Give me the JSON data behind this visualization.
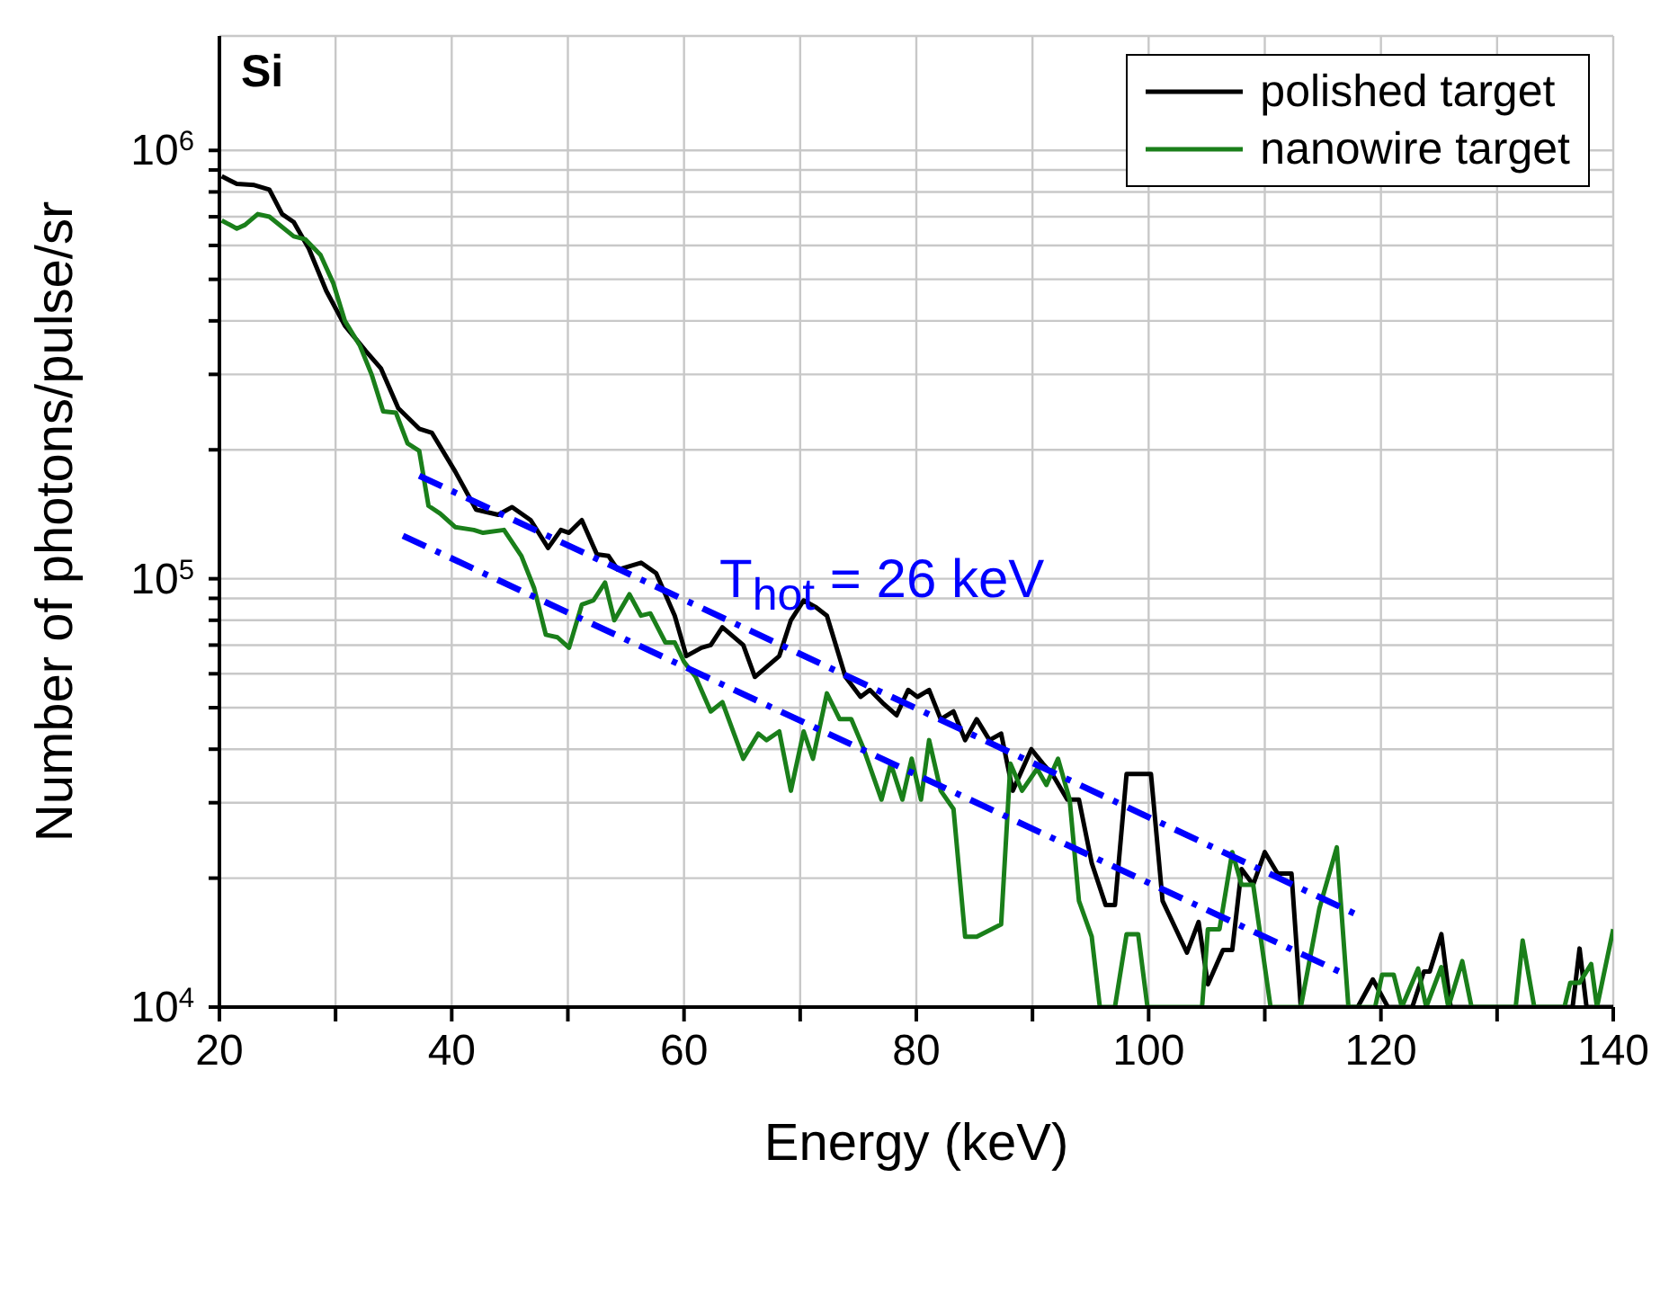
{
  "chart_data": {
    "type": "line",
    "xlabel": "Energy (keV)",
    "ylabel": "Number of photons/pulse/sr",
    "annotations": [
      "Si",
      "T$_{hot}$ = 26 keV"
    ],
    "log": "y",
    "grid": true,
    "legend": "top right",
    "marker": "none",
    "xlim": [
      20,
      140
    ],
    "xticks": [
      20,
      {
        "value": 30,
        "label": null
      },
      40,
      {
        "value": 50,
        "label": null
      },
      60,
      {
        "value": 70,
        "label": null
      },
      80,
      {
        "value": 90,
        "label": null
      },
      100,
      {
        "value": 110,
        "label": null
      },
      120,
      {
        "value": 130,
        "label": null
      },
      140
    ],
    "ylim": [
      10000,
      1850000
    ],
    "yticks": [
      {
        "value": 10000,
        "label": "10$^{4}$"
      },
      {
        "value": 20000,
        "label": null
      },
      {
        "value": 30000,
        "label": null
      },
      {
        "value": 40000,
        "label": null
      },
      {
        "value": 50000,
        "label": null
      },
      {
        "value": 60000,
        "label": null
      },
      {
        "value": 70000,
        "label": null
      },
      {
        "value": 80000,
        "label": null
      },
      {
        "value": 90000,
        "label": null
      },
      {
        "value": 100000,
        "label": "10$^{5}$"
      },
      {
        "value": 200000,
        "label": null
      },
      {
        "value": 300000,
        "label": null
      },
      {
        "value": 400000,
        "label": null
      },
      {
        "value": 500000,
        "label": null
      },
      {
        "value": 600000,
        "label": null
      },
      {
        "value": 700000,
        "label": null
      },
      {
        "value": 800000,
        "label": null
      },
      {
        "value": 900000,
        "label": null
      },
      {
        "value": 1000000,
        "label": "10$^{6}$"
      }
    ],
    "series": [
      {
        "name": "polished target",
        "color": "#000000",
        "line_style": "solid",
        "x": [
          20.2,
          21.5,
          23.0,
          24.3,
          25.4,
          26.4,
          27.7,
          29.2,
          30.8,
          32.6,
          33.9,
          35.4,
          37.2,
          38.3,
          40.3,
          42.1,
          44.0,
          45.2,
          46.8,
          48.3,
          49.4,
          50.1,
          51.2,
          52.5,
          53.5,
          54.3,
          56.3,
          57.6,
          59.2,
          60.2,
          61.5,
          62.3,
          63.3,
          65.1,
          66.1,
          68.2,
          69.2,
          70.3,
          71.3,
          72.3,
          73.9,
          75.2,
          76.0,
          77.2,
          78.3,
          79.3,
          80.1,
          81.1,
          82.1,
          83.2,
          84.2,
          85.2,
          86.3,
          87.3,
          88.3,
          89.9,
          90.9,
          91.7,
          93.0,
          94.0,
          95.1,
          96.3,
          97.1,
          98.1,
          100.2,
          101.2,
          103.3,
          104.3,
          105.1,
          106.4,
          107.2,
          108.0,
          109.0,
          110.0,
          111.1,
          112.3,
          113.1,
          118.0,
          119.3,
          120.6,
          122.7,
          123.7,
          124.2,
          125.2,
          126.0,
          136.5,
          137.1,
          137.7,
          140.0
        ],
        "values": [
          870000,
          835000,
          830000,
          810000,
          710000,
          680000,
          590000,
          470000,
          390000,
          340000,
          310000,
          250000,
          224000,
          219000,
          178000,
          145000,
          141000,
          147000,
          137000,
          118000,
          130000,
          128000,
          137000,
          114000,
          113000,
          105000,
          109000,
          103000,
          82000,
          66000,
          69000,
          70000,
          77000,
          70000,
          59000,
          66000,
          80000,
          89000,
          86000,
          82000,
          59000,
          53000,
          55000,
          51000,
          48000,
          55000,
          53000,
          55000,
          47000,
          49000,
          42000,
          47000,
          42000,
          43500,
          32000,
          40000,
          37000,
          35000,
          30500,
          30500,
          21700,
          17300,
          17300,
          35000,
          35000,
          17700,
          13400,
          15800,
          11300,
          13600,
          13600,
          21000,
          19300,
          23000,
          20500,
          20500,
          10000,
          10000,
          11600,
          10000,
          10000,
          12100,
          12100,
          14800,
          10000,
          10000,
          13700,
          10000,
          10000
        ]
      },
      {
        "name": "nanowire target",
        "color": "#1a7f1a",
        "line_style": "solid",
        "x": [
          20.2,
          21.5,
          22.2,
          23.3,
          24.3,
          26.4,
          27.4,
          28.7,
          29.8,
          30.8,
          32.1,
          33.1,
          34.1,
          35.2,
          36.2,
          37.2,
          38.0,
          39.0,
          40.3,
          41.9,
          42.7,
          44.5,
          46.0,
          47.1,
          48.1,
          49.1,
          50.1,
          51.2,
          52.2,
          53.2,
          54.0,
          55.3,
          56.3,
          57.1,
          58.4,
          59.2,
          60.0,
          61.0,
          62.3,
          63.3,
          65.1,
          66.4,
          67.1,
          68.2,
          69.2,
          70.3,
          71.1,
          72.3,
          73.4,
          74.4,
          75.4,
          77.0,
          77.8,
          78.8,
          79.6,
          80.4,
          81.1,
          82.1,
          83.2,
          84.2,
          85.2,
          87.3,
          88.1,
          89.1,
          90.4,
          91.2,
          92.2,
          93.2,
          94.0,
          95.1,
          95.8,
          97.1,
          98.1,
          99.1,
          99.9,
          104.6,
          105.1,
          106.1,
          107.2,
          108.0,
          109.0,
          110.5,
          113.1,
          114.7,
          116.2,
          117.2,
          119.5,
          120.1,
          121.1,
          121.8,
          123.2,
          123.9,
          125.2,
          125.8,
          127.0,
          127.8,
          131.6,
          132.2,
          133.2,
          135.8,
          136.3,
          137.1,
          138.1,
          138.6,
          140.0
        ],
        "values": [
          686000,
          657000,
          670000,
          710000,
          700000,
          630000,
          620000,
          570000,
          490000,
          400000,
          350000,
          300000,
          246000,
          244000,
          207000,
          199000,
          148000,
          142000,
          132000,
          130000,
          128000,
          130000,
          113000,
          95000,
          74000,
          73000,
          69000,
          87000,
          89000,
          98000,
          80000,
          92000,
          82000,
          83000,
          71000,
          71000,
          64000,
          59000,
          49000,
          51500,
          38000,
          43500,
          42000,
          44000,
          32000,
          44000,
          38000,
          54000,
          47000,
          47000,
          40500,
          30500,
          37000,
          30500,
          38000,
          30500,
          42000,
          32000,
          29000,
          14600,
          14600,
          15600,
          37000,
          32000,
          36000,
          33000,
          38000,
          30500,
          17700,
          14600,
          10000,
          10000,
          14800,
          14800,
          10000,
          10000,
          15200,
          15200,
          23000,
          19300,
          19300,
          10000,
          10000,
          17000,
          23600,
          10000,
          10000,
          11900,
          11900,
          10000,
          12300,
          10000,
          12400,
          10000,
          12800,
          10000,
          10000,
          14300,
          10000,
          10000,
          11400,
          11400,
          12600,
          10000,
          15200
        ]
      },
      {
        "type": "line",
        "color": "#0000ff",
        "line_style": "dashed",
        "x": [
          37.2,
          118.0
        ],
        "values": [
          174000,
          16400
        ]
      },
      {
        "type": "line",
        "color": "#0000ff",
        "line_style": "dashed",
        "x": [
          35.8,
          117.0
        ],
        "values": [
          126000,
          11900
        ]
      }
    ]
  }
}
